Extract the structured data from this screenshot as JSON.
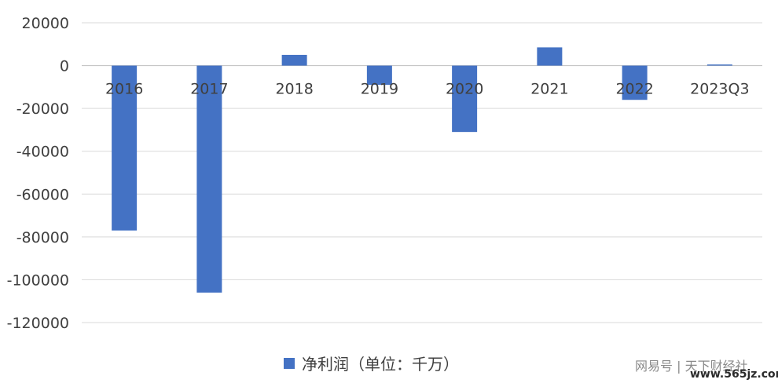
{
  "chart_data": {
    "type": "bar",
    "categories": [
      "2016",
      "2017",
      "2018",
      "2019",
      "2020",
      "2021",
      "2022",
      "2023Q3"
    ],
    "series": [
      {
        "name": "净利润（单位：千万）",
        "values": [
          -77000,
          -106000,
          5000,
          -9000,
          -31000,
          8500,
          -16000,
          500
        ],
        "color": "#4472C4"
      }
    ],
    "ylim": [
      -120000,
      20000
    ],
    "yticks": [
      20000,
      0,
      -20000,
      -40000,
      -60000,
      -80000,
      -100000,
      -120000
    ],
    "grid": true,
    "legend_position": "bottom-center"
  },
  "watermark": "网易号 | 天下财经社",
  "site_mark": "www.565jz.com"
}
